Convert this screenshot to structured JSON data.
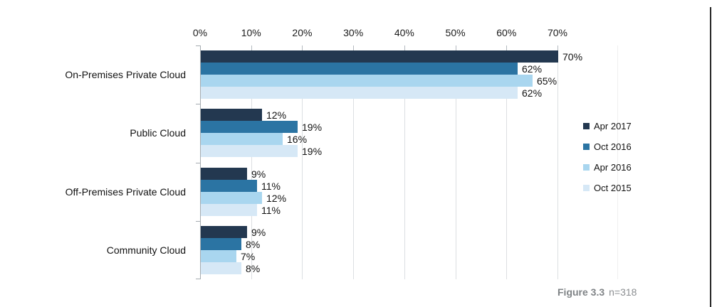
{
  "chart_data": {
    "type": "bar",
    "orientation": "horizontal",
    "title": "",
    "categories": [
      "On-Premises Private Cloud",
      "Public Cloud",
      "Off-Premises Private Cloud",
      "Community Cloud"
    ],
    "series": [
      {
        "name": "Apr 2017",
        "color": "#233850",
        "values": [
          70,
          12,
          9,
          9
        ]
      },
      {
        "name": "Oct 2016",
        "color": "#2b74a3",
        "values": [
          62,
          19,
          11,
          8
        ]
      },
      {
        "name": "Apr 2016",
        "color": "#a9d6ef",
        "values": [
          65,
          16,
          12,
          7
        ]
      },
      {
        "name": "Oct 2015",
        "color": "#d6e8f6",
        "values": [
          62,
          19,
          11,
          8
        ]
      }
    ],
    "x_ticks": [
      "0%",
      "10%",
      "20%",
      "30%",
      "40%",
      "50%",
      "60%",
      "70%"
    ],
    "xlim": [
      0,
      70
    ],
    "grid": true,
    "legend_position": "right",
    "value_label_suffix": "%"
  },
  "caption": {
    "figure_label": "Figure 3.3",
    "sample_size": "n=318"
  },
  "colors": {
    "gridline": "#dcdfe2",
    "axis": "#a5abb0",
    "grid_stub": "#b4bac0",
    "text": "#121212",
    "caption": "#7f8386",
    "page_edge": "#2a2a2a"
  }
}
